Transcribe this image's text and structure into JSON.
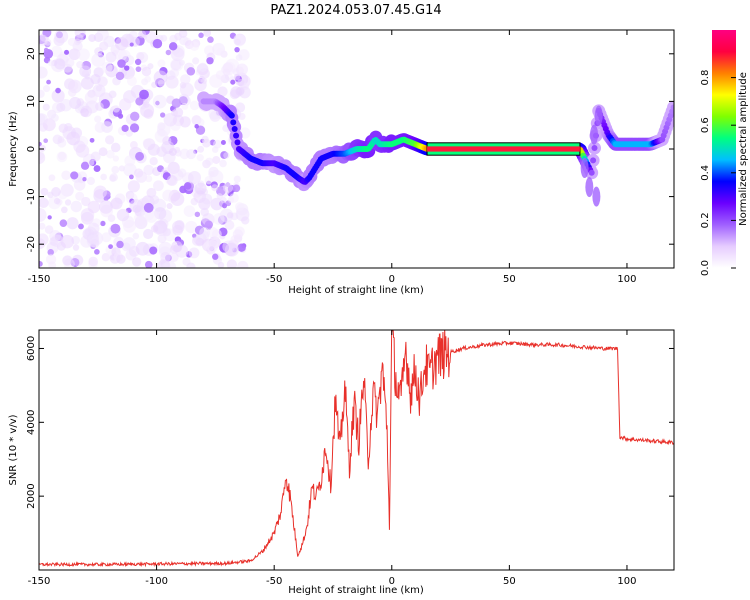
{
  "title": "PAZ1.2024.053.07.45.G14",
  "colors": {
    "snr_line": "#e8302a",
    "tracking_ridge": "#ff1a3c",
    "tracking_frame": "#000000"
  },
  "chart_data": [
    {
      "id": "spectrogram",
      "type": "heatmap",
      "xlabel": "Height of straight line (km)",
      "ylabel": "Frequency (Hz)",
      "xlim": [
        -150,
        120
      ],
      "ylim": [
        -25,
        25
      ],
      "xticks": [
        -150,
        -100,
        -50,
        0,
        50,
        100
      ],
      "yticks": [
        -20,
        -10,
        0,
        10,
        20
      ],
      "colorbar": {
        "label": "Normalized spectral amplitude",
        "range": [
          0,
          1
        ],
        "ticks": [
          0.0,
          0.2,
          0.4,
          0.6,
          0.8
        ],
        "colormap": [
          "#ffffff",
          "#e6ccff",
          "#a060ff",
          "#6a00ff",
          "#0000ff",
          "#00bfff",
          "#00ff80",
          "#80ff00",
          "#ffff00",
          "#ff8000",
          "#ff0040",
          "#ff0080"
        ]
      },
      "ridge": {
        "x": [
          -80,
          -75,
          -72,
          -68,
          -65,
          -60,
          -55,
          -50,
          -45,
          -40,
          -37,
          -35,
          -30,
          -25,
          -20,
          -15,
          -10,
          -7,
          -5,
          0,
          5,
          10,
          15,
          80,
          82,
          85,
          88,
          92,
          95,
          100,
          105,
          110,
          115,
          120
        ],
        "y": [
          10,
          10,
          9,
          7,
          0,
          -2,
          -3,
          -3,
          -4,
          -6,
          -7,
          -6,
          -2,
          -1,
          -1,
          0,
          0,
          2,
          1,
          1,
          2,
          1,
          0,
          0,
          -2,
          -5,
          8,
          3,
          1,
          1,
          1,
          1,
          2,
          9
        ],
        "amplitude": [
          0.15,
          0.15,
          0.25,
          0.35,
          0.3,
          0.35,
          0.35,
          0.3,
          0.35,
          0.35,
          0.3,
          0.35,
          0.35,
          0.35,
          0.4,
          0.5,
          0.55,
          0.5,
          0.5,
          0.55,
          0.55,
          0.6,
          0.8,
          0.8,
          0.5,
          0.2,
          0.2,
          0.3,
          0.45,
          0.45,
          0.45,
          0.45,
          0.2,
          0.15
        ]
      }
    },
    {
      "id": "snr",
      "type": "line",
      "xlabel": "Height of straight line (km)",
      "ylabel": "SNR (10 * v/v)",
      "xlim": [
        -150,
        120
      ],
      "ylim": [
        0,
        6500
      ],
      "xticks": [
        -150,
        -100,
        -50,
        0,
        50,
        100
      ],
      "yticks": [
        2000,
        4000,
        6000
      ],
      "series": [
        {
          "x": [
            -150,
            -120,
            -90,
            -70,
            -60,
            -55,
            -50,
            -47,
            -45,
            -43,
            -41,
            -40,
            -38,
            -36,
            -34,
            -32,
            -30,
            -28,
            -26,
            -24,
            -22,
            -20,
            -18,
            -16,
            -14,
            -12,
            -10,
            -8,
            -6,
            -4,
            -2,
            -1,
            0,
            2,
            4,
            6,
            8,
            10,
            12,
            14,
            16,
            18,
            20,
            25,
            30,
            40,
            50,
            60,
            70,
            80,
            90,
            96,
            97,
            100,
            110,
            120
          ],
          "y": [
            150,
            150,
            170,
            180,
            250,
            500,
            1000,
            1600,
            2600,
            1900,
            900,
            400,
            700,
            1200,
            2200,
            2000,
            2500,
            3400,
            2300,
            4600,
            3200,
            5000,
            2800,
            4500,
            3500,
            5200,
            3000,
            4800,
            4200,
            5500,
            3800,
            1200,
            6400,
            5000,
            4600,
            6000,
            4800,
            5400,
            4600,
            5600,
            5300,
            5600,
            5800,
            5900,
            6000,
            6100,
            6150,
            6100,
            6100,
            6050,
            6000,
            6000,
            3600,
            3550,
            3500,
            3450
          ]
        }
      ]
    }
  ]
}
